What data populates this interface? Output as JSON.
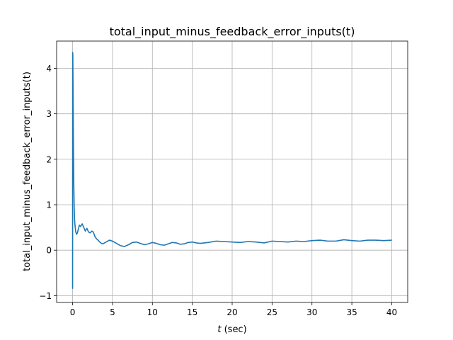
{
  "chart_data": {
    "type": "line",
    "title": "total_input_minus_feedback_error_inputs(t)",
    "xlabel_var": "t",
    "xlabel_unit": "(sec)",
    "ylabel": "total_input_minus_feedback_error_inputs(t)",
    "xlim": [
      -2.0,
      42.0
    ],
    "ylim": [
      -1.15,
      4.6
    ],
    "xticks": [
      0,
      5,
      10,
      15,
      20,
      25,
      30,
      35,
      40
    ],
    "yticks": [
      -1,
      0,
      1,
      2,
      3,
      4
    ],
    "grid": true,
    "line_color": "#1f77b4",
    "series": [
      {
        "x": [
          0.0,
          0.01,
          0.03,
          0.06,
          0.1,
          0.15,
          0.2,
          0.25,
          0.3,
          0.4,
          0.5,
          0.6,
          0.7,
          0.85,
          1.0,
          1.2,
          1.4,
          1.6,
          1.8,
          2.0,
          2.2,
          2.4,
          2.6,
          2.8,
          3.0,
          3.2,
          3.4,
          3.6,
          3.8,
          4.2,
          4.6,
          5.0,
          5.5,
          6.0,
          6.5,
          7.0,
          7.5,
          8.0,
          8.5,
          9.0,
          9.5,
          10.0,
          10.5,
          11.0,
          11.5,
          12.0,
          12.5,
          13.0,
          13.5,
          14.0,
          14.5,
          15.0,
          15.5,
          16.0,
          17.0,
          18.0,
          19.0,
          20.0,
          21.0,
          22.0,
          23.0,
          24.0,
          25.0,
          26.0,
          27.0,
          28.0,
          29.0,
          30.0,
          31.0,
          32.0,
          33.0,
          34.0,
          35.0,
          36.0,
          37.0,
          38.0,
          39.0,
          40.0
        ],
        "y": [
          -0.85,
          4.35,
          4.3,
          3.6,
          2.5,
          1.5,
          0.95,
          0.68,
          0.55,
          0.4,
          0.35,
          0.38,
          0.45,
          0.55,
          0.52,
          0.58,
          0.5,
          0.42,
          0.48,
          0.4,
          0.38,
          0.42,
          0.4,
          0.3,
          0.25,
          0.22,
          0.18,
          0.15,
          0.14,
          0.18,
          0.22,
          0.2,
          0.15,
          0.1,
          0.08,
          0.12,
          0.17,
          0.18,
          0.15,
          0.12,
          0.14,
          0.17,
          0.15,
          0.12,
          0.11,
          0.14,
          0.17,
          0.16,
          0.13,
          0.14,
          0.17,
          0.18,
          0.16,
          0.15,
          0.17,
          0.2,
          0.19,
          0.18,
          0.17,
          0.19,
          0.18,
          0.16,
          0.2,
          0.19,
          0.18,
          0.2,
          0.19,
          0.21,
          0.22,
          0.2,
          0.2,
          0.23,
          0.21,
          0.2,
          0.22,
          0.22,
          0.21,
          0.22
        ]
      }
    ]
  }
}
